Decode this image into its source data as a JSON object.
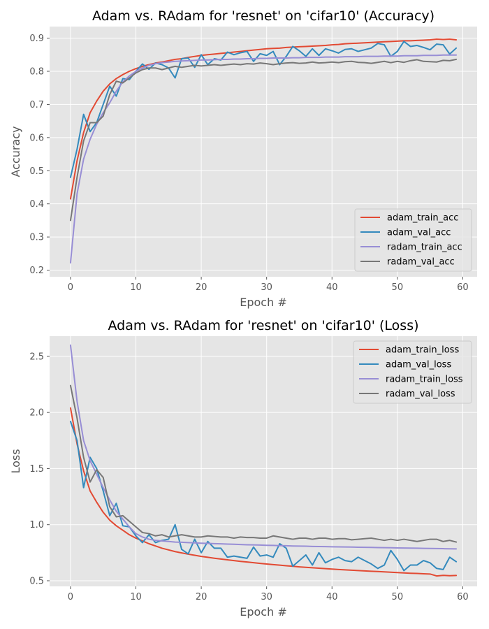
{
  "chart_data": [
    {
      "type": "line",
      "title": "Adam vs. RAdam for 'resnet' on 'cifar10' (Accuracy)",
      "xlabel": "Epoch #",
      "ylabel": "Accuracy",
      "xlim": [
        -3.2,
        62.2
      ],
      "ylim": [
        0.18,
        0.935
      ],
      "xticks": [
        0,
        10,
        20,
        30,
        40,
        50,
        60
      ],
      "yticks": [
        0.2,
        0.3,
        0.4,
        0.5,
        0.6,
        0.7,
        0.8,
        0.9
      ],
      "grid": true,
      "legend_position": "lower-right",
      "series": [
        {
          "name": "adam_train_acc",
          "color": "#e24a33",
          "values": [
            0.415,
            0.53,
            0.615,
            0.675,
            0.71,
            0.74,
            0.762,
            0.778,
            0.79,
            0.8,
            0.808,
            0.815,
            0.82,
            0.825,
            0.828,
            0.832,
            0.836,
            0.838,
            0.842,
            0.845,
            0.848,
            0.85,
            0.852,
            0.854,
            0.856,
            0.858,
            0.86,
            0.862,
            0.864,
            0.866,
            0.868,
            0.869,
            0.87,
            0.872,
            0.873,
            0.874,
            0.875,
            0.876,
            0.877,
            0.878,
            0.88,
            0.881,
            0.883,
            0.884,
            0.885,
            0.886,
            0.887,
            0.888,
            0.889,
            0.89,
            0.891,
            0.892,
            0.892,
            0.893,
            0.894,
            0.895,
            0.897,
            0.896,
            0.897,
            0.895
          ]
        },
        {
          "name": "adam_val_acc",
          "color": "#348abd",
          "values": [
            0.48,
            0.565,
            0.67,
            0.618,
            0.645,
            0.7,
            0.755,
            0.725,
            0.778,
            0.775,
            0.8,
            0.822,
            0.806,
            0.825,
            0.82,
            0.81,
            0.78,
            0.838,
            0.84,
            0.812,
            0.85,
            0.82,
            0.838,
            0.834,
            0.858,
            0.85,
            0.856,
            0.86,
            0.83,
            0.853,
            0.848,
            0.86,
            0.82,
            0.845,
            0.875,
            0.862,
            0.845,
            0.868,
            0.848,
            0.868,
            0.862,
            0.855,
            0.866,
            0.868,
            0.86,
            0.865,
            0.87,
            0.884,
            0.88,
            0.845,
            0.86,
            0.89,
            0.875,
            0.878,
            0.872,
            0.865,
            0.882,
            0.88,
            0.852,
            0.87
          ]
        },
        {
          "name": "radam_train_acc",
          "color": "#988ed5",
          "values": [
            0.222,
            0.43,
            0.535,
            0.595,
            0.64,
            0.675,
            0.705,
            0.74,
            0.768,
            0.786,
            0.8,
            0.81,
            0.818,
            0.823,
            0.826,
            0.828,
            0.83,
            0.831,
            0.832,
            0.833,
            0.834,
            0.834,
            0.835,
            0.836,
            0.836,
            0.837,
            0.837,
            0.838,
            0.838,
            0.839,
            0.839,
            0.84,
            0.84,
            0.84,
            0.841,
            0.841,
            0.842,
            0.842,
            0.842,
            0.843,
            0.843,
            0.843,
            0.844,
            0.844,
            0.844,
            0.845,
            0.845,
            0.845,
            0.846,
            0.846,
            0.846,
            0.847,
            0.847,
            0.847,
            0.848,
            0.848,
            0.848,
            0.849,
            0.849,
            0.849
          ]
        },
        {
          "name": "radam_val_acc",
          "color": "#777777",
          "values": [
            0.35,
            0.48,
            0.59,
            0.645,
            0.645,
            0.665,
            0.73,
            0.77,
            0.765,
            0.78,
            0.795,
            0.805,
            0.81,
            0.81,
            0.805,
            0.81,
            0.815,
            0.812,
            0.815,
            0.818,
            0.816,
            0.818,
            0.82,
            0.818,
            0.82,
            0.822,
            0.82,
            0.823,
            0.822,
            0.825,
            0.823,
            0.82,
            0.823,
            0.825,
            0.826,
            0.824,
            0.825,
            0.828,
            0.825,
            0.826,
            0.828,
            0.826,
            0.829,
            0.83,
            0.827,
            0.826,
            0.824,
            0.827,
            0.83,
            0.826,
            0.83,
            0.827,
            0.832,
            0.835,
            0.83,
            0.829,
            0.828,
            0.833,
            0.832,
            0.836
          ]
        }
      ]
    },
    {
      "type": "line",
      "title": "Adam vs. RAdam for 'resnet' on 'cifar10' (Loss)",
      "xlabel": "Epoch #",
      "ylabel": "Loss",
      "xlim": [
        -3.2,
        62.2
      ],
      "ylim": [
        0.45,
        2.68
      ],
      "xticks": [
        0,
        10,
        20,
        30,
        40,
        50,
        60
      ],
      "yticks": [
        0.5,
        1.0,
        1.5,
        2.0,
        2.5
      ],
      "grid": true,
      "legend_position": "upper-right",
      "series": [
        {
          "name": "adam_train_loss",
          "color": "#e24a33",
          "values": [
            2.04,
            1.72,
            1.48,
            1.3,
            1.2,
            1.11,
            1.04,
            0.99,
            0.95,
            0.91,
            0.88,
            0.855,
            0.83,
            0.81,
            0.79,
            0.775,
            0.76,
            0.748,
            0.737,
            0.727,
            0.717,
            0.709,
            0.701,
            0.694,
            0.687,
            0.68,
            0.673,
            0.667,
            0.661,
            0.655,
            0.649,
            0.644,
            0.639,
            0.634,
            0.629,
            0.624,
            0.62,
            0.616,
            0.612,
            0.608,
            0.604,
            0.6,
            0.597,
            0.594,
            0.591,
            0.588,
            0.585,
            0.582,
            0.579,
            0.576,
            0.573,
            0.57,
            0.567,
            0.565,
            0.562,
            0.56,
            0.543,
            0.548,
            0.545,
            0.547
          ]
        },
        {
          "name": "adam_val_loss",
          "color": "#348abd",
          "values": [
            1.92,
            1.75,
            1.33,
            1.6,
            1.5,
            1.3,
            1.08,
            1.19,
            0.99,
            0.98,
            0.9,
            0.84,
            0.91,
            0.84,
            0.86,
            0.87,
            1.0,
            0.78,
            0.74,
            0.87,
            0.75,
            0.85,
            0.79,
            0.79,
            0.71,
            0.72,
            0.71,
            0.7,
            0.8,
            0.72,
            0.73,
            0.71,
            0.83,
            0.79,
            0.63,
            0.68,
            0.73,
            0.64,
            0.75,
            0.66,
            0.69,
            0.71,
            0.68,
            0.67,
            0.71,
            0.68,
            0.65,
            0.61,
            0.64,
            0.77,
            0.69,
            0.59,
            0.64,
            0.64,
            0.68,
            0.66,
            0.61,
            0.6,
            0.71,
            0.67
          ]
        },
        {
          "name": "radam_train_loss",
          "color": "#988ed5",
          "values": [
            2.6,
            2.1,
            1.75,
            1.57,
            1.45,
            1.33,
            1.22,
            1.12,
            1.05,
            0.98,
            0.92,
            0.89,
            0.87,
            0.86,
            0.855,
            0.85,
            0.845,
            0.843,
            0.84,
            0.838,
            0.835,
            0.833,
            0.831,
            0.829,
            0.827,
            0.825,
            0.823,
            0.821,
            0.82,
            0.818,
            0.816,
            0.815,
            0.813,
            0.812,
            0.81,
            0.809,
            0.808,
            0.806,
            0.805,
            0.804,
            0.803,
            0.802,
            0.801,
            0.8,
            0.799,
            0.798,
            0.797,
            0.796,
            0.795,
            0.794,
            0.793,
            0.792,
            0.791,
            0.79,
            0.789,
            0.788,
            0.787,
            0.786,
            0.785,
            0.784
          ]
        },
        {
          "name": "radam_val_loss",
          "color": "#777777",
          "values": [
            2.24,
            1.95,
            1.6,
            1.38,
            1.49,
            1.42,
            1.16,
            1.07,
            1.08,
            1.03,
            0.98,
            0.93,
            0.92,
            0.9,
            0.91,
            0.89,
            0.9,
            0.91,
            0.9,
            0.89,
            0.89,
            0.9,
            0.895,
            0.89,
            0.89,
            0.88,
            0.89,
            0.885,
            0.885,
            0.88,
            0.88,
            0.9,
            0.89,
            0.88,
            0.87,
            0.88,
            0.88,
            0.87,
            0.88,
            0.88,
            0.87,
            0.875,
            0.875,
            0.865,
            0.87,
            0.875,
            0.88,
            0.87,
            0.86,
            0.87,
            0.86,
            0.87,
            0.86,
            0.85,
            0.86,
            0.87,
            0.87,
            0.85,
            0.86,
            0.845
          ]
        }
      ]
    }
  ]
}
